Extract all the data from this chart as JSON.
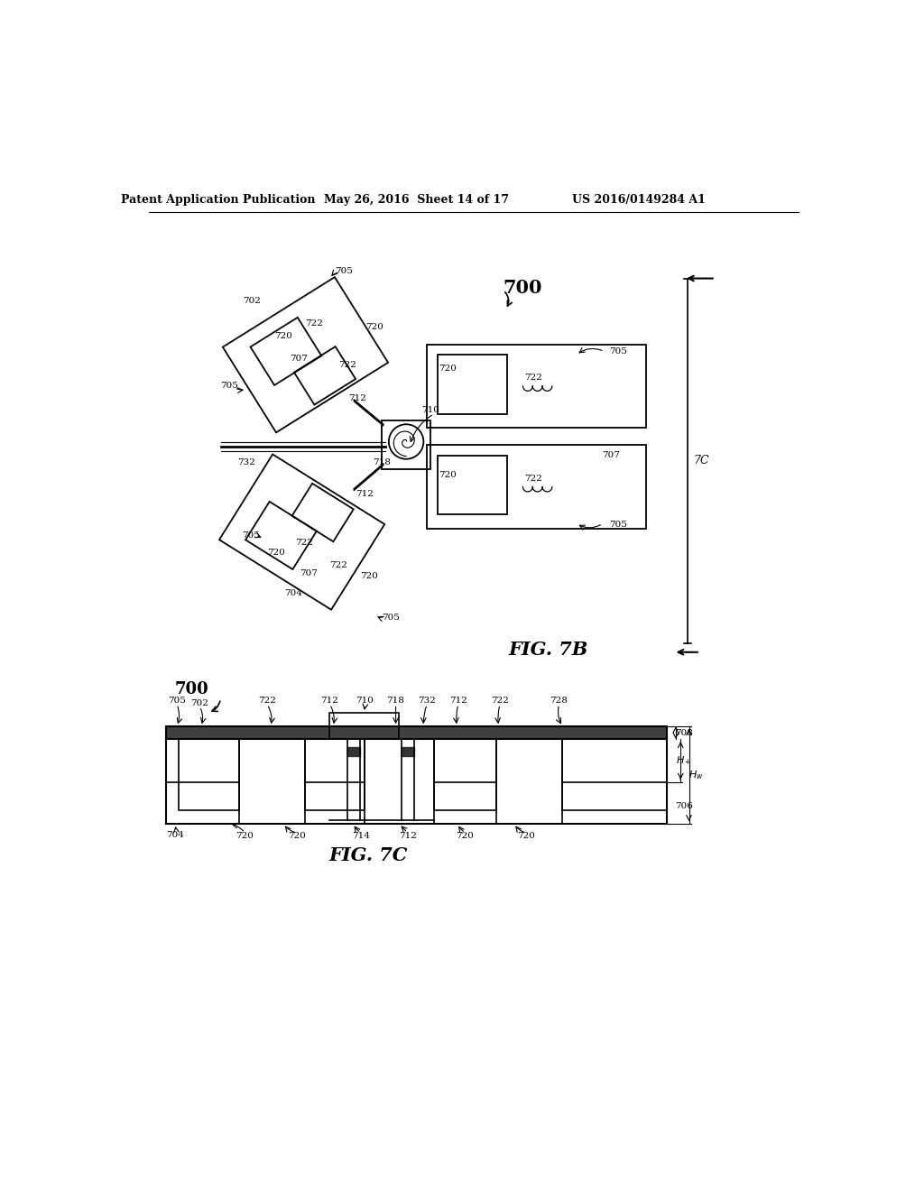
{
  "bg_color": "#ffffff",
  "header_left": "Patent Application Publication",
  "header_mid": "May 26, 2016  Sheet 14 of 17",
  "header_right": "US 2016/0149284 A1",
  "fig7b_label": "FIG. 7B",
  "fig7c_label": "FIG. 7C"
}
